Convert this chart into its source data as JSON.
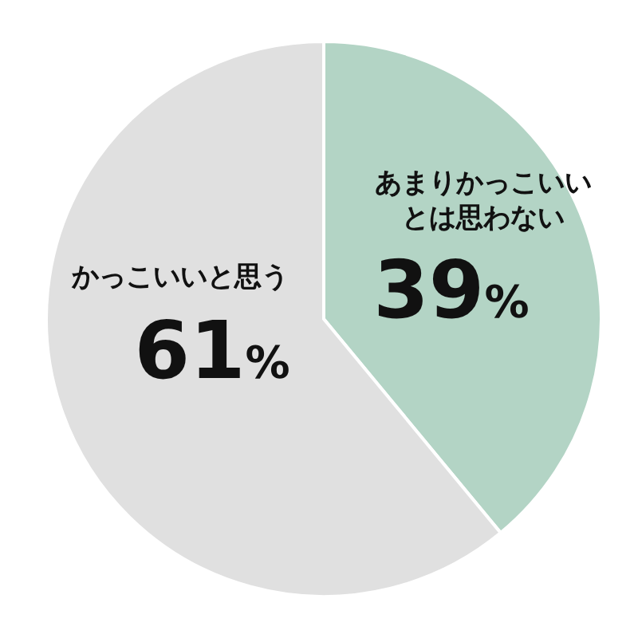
{
  "chart_data": {
    "type": "pie",
    "categories": [
      "あまりかっこいいとは思わない",
      "かっこいいと思う"
    ],
    "values": [
      39,
      61
    ],
    "colors": [
      "#b3d4c5",
      "#e0e0e0"
    ],
    "value_labels": [
      "39%",
      "61%"
    ]
  }
}
